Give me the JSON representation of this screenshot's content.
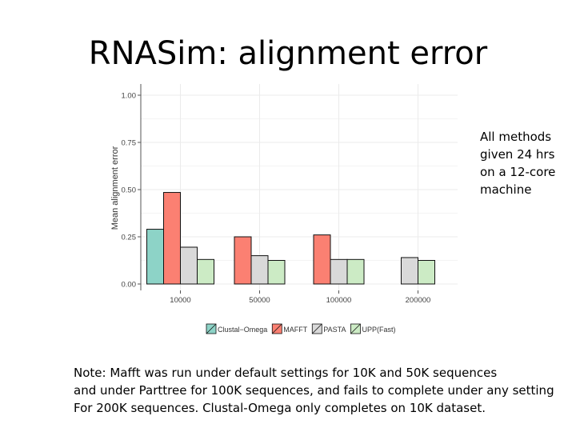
{
  "slide": {
    "title": "RNASim: alignment error",
    "side_note": "All methods given 24 hrs on a 12-core machine",
    "footnote_lines": [
      "Note: Mafft was run under default settings for 10K and 50K sequences",
      "and under Parttree for 100K sequences, and fails to complete under any setting",
      "For 200K sequences.  Clustal-Omega only completes on 10K dataset."
    ]
  },
  "chart_data": {
    "type": "bar",
    "title": "",
    "xlabel": "",
    "ylabel": "Mean alignment error",
    "ylim": [
      0,
      1.0
    ],
    "yticks": [
      "0.00",
      "0.25",
      "0.50",
      "0.75",
      "1.00"
    ],
    "categories": [
      "10000",
      "50000",
      "100000",
      "200000"
    ],
    "series": [
      {
        "name": "Clustal−Omega",
        "color": "#8dd3c7",
        "values": [
          0.29,
          null,
          null,
          null
        ]
      },
      {
        "name": "MAFFT",
        "color": "#fb8072",
        "values": [
          0.485,
          0.25,
          0.26,
          null
        ]
      },
      {
        "name": "PASTA",
        "color": "#d9d9d9",
        "values": [
          0.195,
          0.15,
          0.13,
          0.14
        ]
      },
      {
        "name": "UPP(Fast)",
        "color": "#ccebc5",
        "values": [
          0.13,
          0.125,
          0.13,
          0.125
        ]
      }
    ],
    "grid": true,
    "legend_position": "bottom"
  }
}
